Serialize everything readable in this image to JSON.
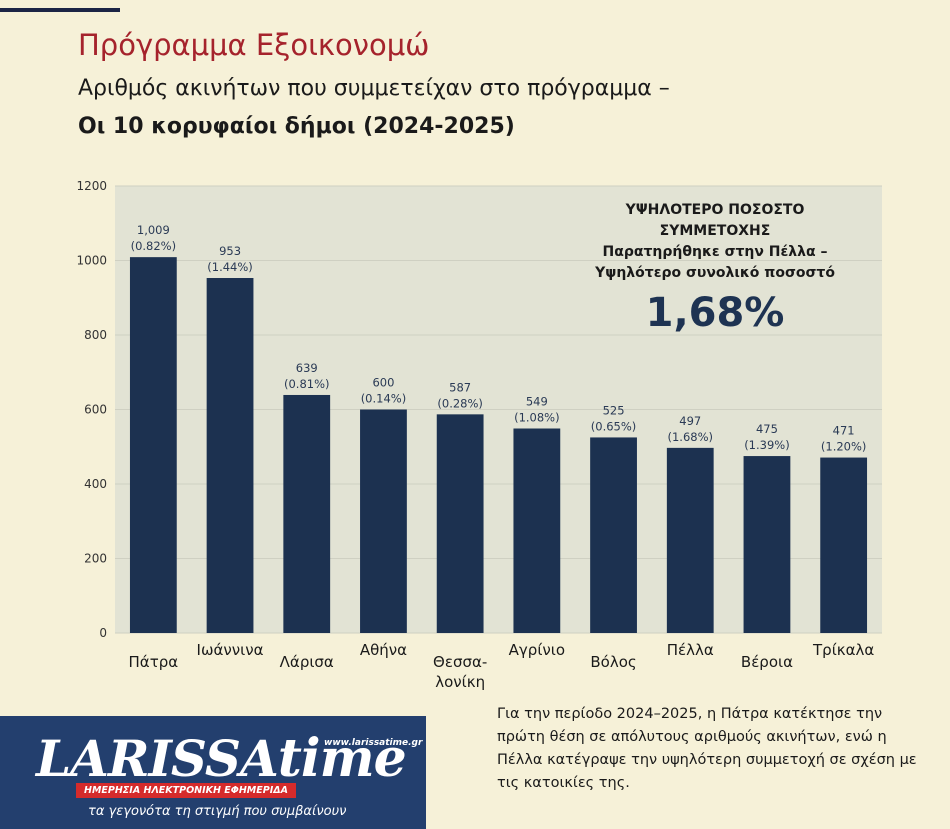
{
  "header": {
    "title": "Πρόγραμμα Εξοικονομώ",
    "subtitle_line1": "Αριθμός ακινήτων που συμμετείχαν στο πρόγραμμα –",
    "subtitle_line2": "Οι 10 κορυφαίοι δήμοι (2024-2025)"
  },
  "callout": {
    "line1": "ΥΨΗΛΟΤΕΡΟ ΠΟΣΟΣΤΟ",
    "line2": "ΣΥΜΜΕΤΟΧΗΣ",
    "line3": "Παρατηρήθηκε στην Πέλλα –",
    "line4": "Υψηλότερο συνολικό ποσοστό",
    "big": "1,68%"
  },
  "note": "Για την περίοδο 2024–2025, η Πάτρα κατέκτησε την πρώτη θέση σε απόλυτους αριθμούς ακινήτων, ενώ η Πέλλα κατέγραψε την υψηλότερη συμμετοχή σε σχέση με τις κατοικίες της.",
  "logo": {
    "brand_left": "LARISSA",
    "brand_right": "time",
    "url": "www.larissatime.gr",
    "tagline": "ΗΜΕΡΗΣΙΑ ΗΛΕΚΤΡΟΝΙΚΗ ΕΦΗΜΕΡΙΔΑ",
    "slogan": "τα γεγονότα τη στιγμή που συμβαίνουν"
  },
  "colors": {
    "background": "#f6f1d8",
    "plot_bg": "#e2e3d4",
    "bar": "#1c3150",
    "title_red": "#a5232c",
    "callout_number": "#1e3352",
    "logo_blue": "#233f6e",
    "logo_red": "#d52b2b"
  },
  "chart_data": {
    "type": "bar",
    "categories": [
      "Πάτρα",
      "Ιωάννινα",
      "Λάρισα",
      "Αθήνα",
      "Θεσσα-\nλονίκη",
      "Αγρίνιο",
      "Βόλος",
      "Πέλλα",
      "Βέροια",
      "Τρίκαλα"
    ],
    "values": [
      1009,
      953,
      639,
      600,
      587,
      549,
      525,
      497,
      475,
      471
    ],
    "value_labels": [
      "1,009",
      "953",
      "639",
      "600",
      "587",
      "549",
      "525",
      "497",
      "475",
      "471"
    ],
    "percent_labels": [
      "(0.82%)",
      "(1.44%)",
      "(0.81%)",
      "(0.14%)",
      "(0.28%)",
      "(1.08%)",
      "(0.65%)",
      "(1.68%)",
      "(1.39%)",
      "(1.20%)"
    ],
    "ylim": [
      0,
      1200
    ],
    "yticks": [
      0,
      200,
      400,
      600,
      800,
      1000,
      1200
    ],
    "grid": true
  }
}
